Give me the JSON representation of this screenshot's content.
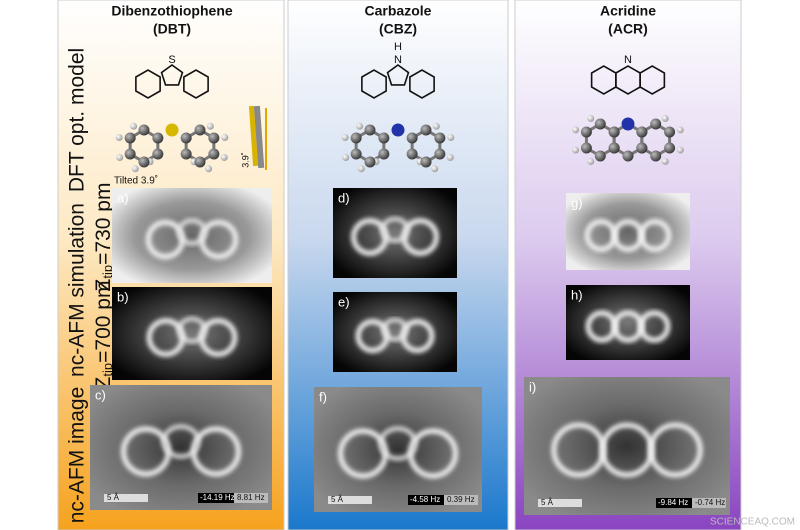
{
  "columns": [
    {
      "name": "Dibenzothiophene",
      "abbreviation": "(DBT)",
      "heteroatom": "S"
    },
    {
      "name": "Carbazole",
      "abbreviation": "(CBZ)",
      "heteroatom": "N",
      "hydrogen": "H"
    },
    {
      "name": "Acridine",
      "abbreviation": "(ACR)",
      "heteroatom": "N"
    }
  ],
  "row_labels": {
    "model": "DFT opt. model",
    "simulation": "nc-AFM simulation",
    "image": "nc-AFM image"
  },
  "tip_heights": [
    {
      "symbol": "Z",
      "subscript": "tip",
      "value": "=730 pm"
    },
    {
      "symbol": "Z",
      "subscript": "tip",
      "value": "=700 pm"
    }
  ],
  "tilt": {
    "caption": "Tilted 3.9˚",
    "angle": "3.9˚"
  },
  "panels": [
    "a)",
    "b)",
    "c)",
    "d)",
    "e)",
    "f)",
    "g)",
    "h)",
    "i)"
  ],
  "scale_bars": [
    {
      "length": "5 Å",
      "min": "-14.19 Hz",
      "max": "8.81 Hz"
    },
    {
      "length": "5 Å",
      "min": "-4.58 Hz",
      "max": "0.39 Hz"
    },
    {
      "length": "5 Å",
      "min": "-9.84 Hz",
      "max": "-0.74 Hz"
    }
  ],
  "watermark": "SCIENCEAQ.COM"
}
